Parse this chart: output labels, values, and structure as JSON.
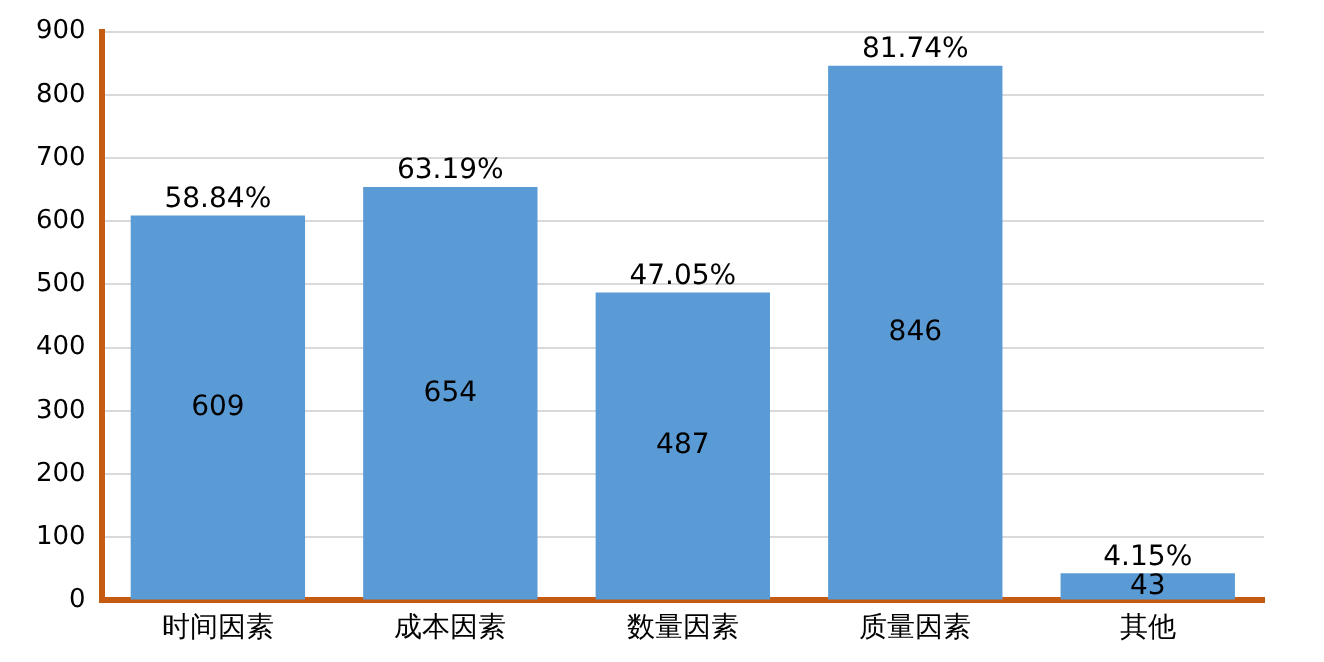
{
  "chart_data": {
    "type": "bar",
    "categories": [
      "时间因素",
      "成本因素",
      "数量因素",
      "质量因素",
      "其他"
    ],
    "values": [
      609,
      654,
      487,
      846,
      43
    ],
    "color": "#5b9bd5",
    "data_labels": true,
    "ylim": [
      0,
      900
    ],
    "yticks": [
      0,
      100,
      200,
      300,
      400,
      500,
      600,
      700,
      800,
      900
    ],
    "grid": "y",
    "annotations": [
      {
        "text": "58.84%",
        "x": "时间因素",
        "y": 609
      },
      {
        "text": "63.19%",
        "x": "成本因素",
        "y": 654
      },
      {
        "text": "47.05%",
        "x": "数量因素",
        "y": 487
      },
      {
        "text": "81.74%",
        "x": "质量因素",
        "y": 846
      },
      {
        "text": "4.15%",
        "x": "其他",
        "y": 43
      }
    ]
  }
}
